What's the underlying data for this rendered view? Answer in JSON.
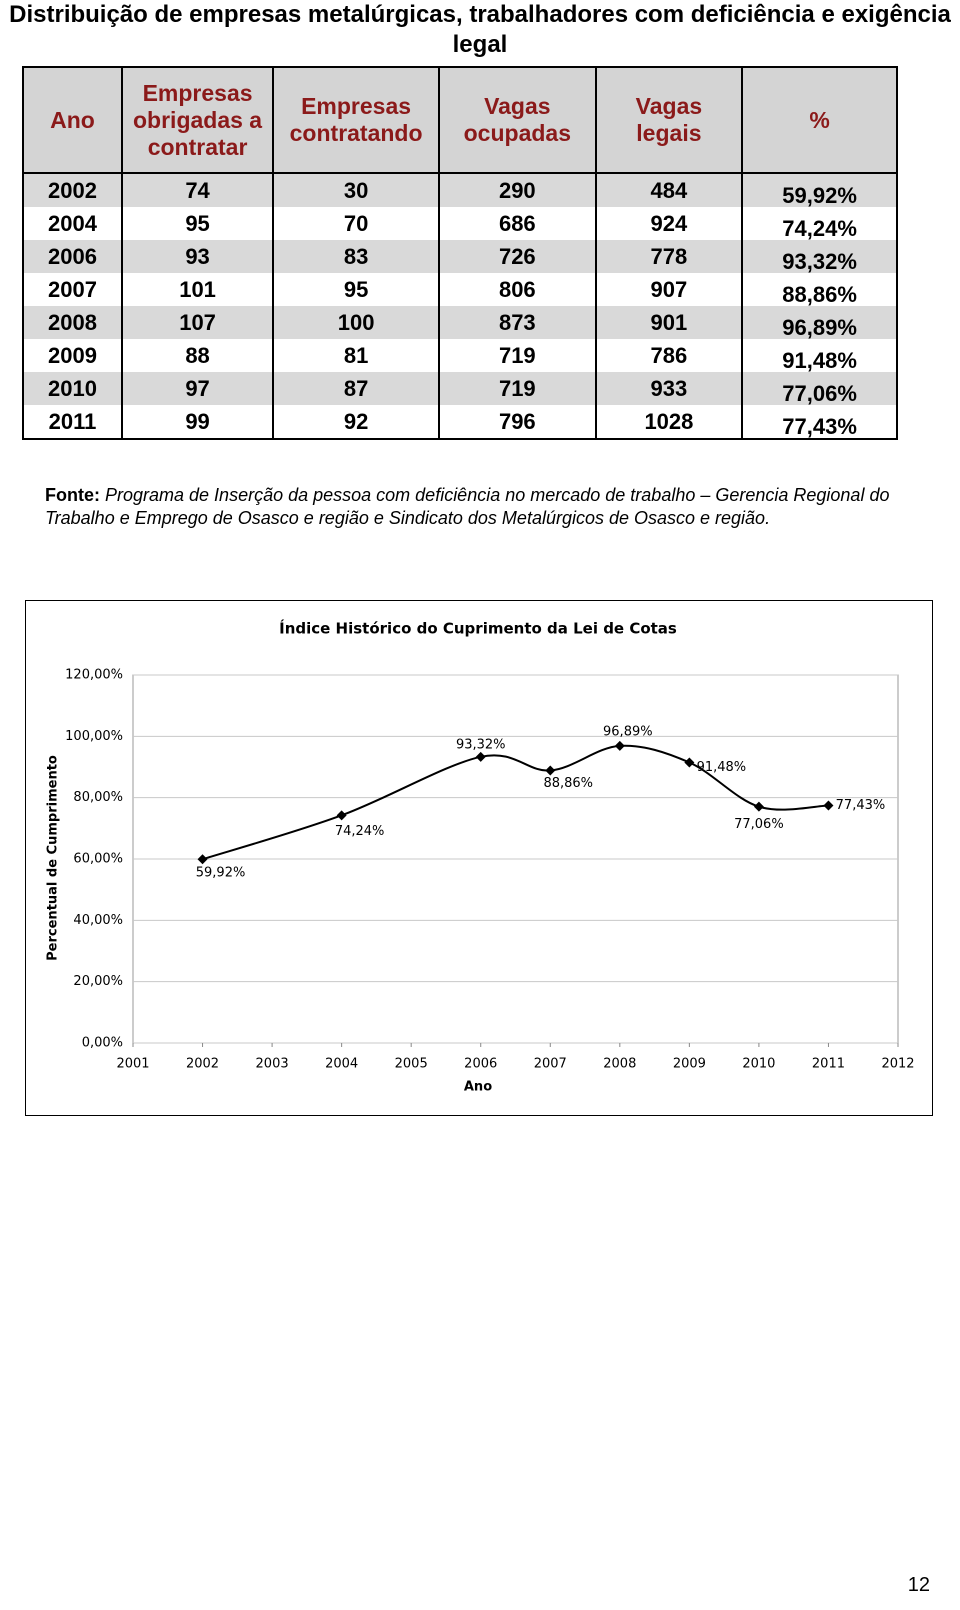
{
  "title": "Distribuição de empresas metalúrgicas, trabalhadores com deficiência e exigência legal",
  "table": {
    "header": [
      "Ano",
      "Empresas obrigadas a contratar",
      "Empresas contratando",
      "Vagas ocupadas",
      "Vagas legais",
      "%"
    ],
    "rows": [
      [
        2002,
        74,
        30,
        290,
        484,
        "59,92%"
      ],
      [
        2004,
        95,
        70,
        686,
        924,
        "74,24%"
      ],
      [
        2006,
        93,
        83,
        726,
        778,
        "93,32%"
      ],
      [
        2007,
        101,
        95,
        806,
        907,
        "88,86%"
      ],
      [
        2008,
        107,
        100,
        873,
        901,
        "96,89%"
      ],
      [
        2009,
        88,
        81,
        719,
        786,
        "91,48%"
      ],
      [
        2010,
        97,
        87,
        719,
        933,
        "77,06%"
      ],
      [
        2011,
        99,
        92,
        796,
        1028,
        "77,43%"
      ]
    ]
  },
  "source": {
    "label": "Fonte:",
    "text": "Programa de Inserção da pessoa com deficiência no mercado de trabalho – Gerencia Regional do Trabalho e Emprego de Osasco e região e Sindicato dos Metalúrgicos de Osasco e região."
  },
  "chart_data": {
    "type": "line",
    "title": "Índice Histórico do Cuprimento da Lei de Cotas",
    "x_label": "Ano",
    "y_label": "Percentual de Cumprimento",
    "x": [
      2002,
      2004,
      2006,
      2007,
      2008,
      2009,
      2010,
      2011
    ],
    "values": [
      59.92,
      74.24,
      93.32,
      88.86,
      96.89,
      91.48,
      77.06,
      77.43
    ],
    "value_labels": [
      "59,92%",
      "74,24%",
      "93,32%",
      "88,86%",
      "96,89%",
      "91,48%",
      "77,06%",
      "77,43%"
    ],
    "color": "#000000",
    "xlim": [
      2001,
      2012
    ],
    "xticks": [
      2001,
      2002,
      2003,
      2004,
      2005,
      2006,
      2007,
      2008,
      2009,
      2010,
      2011,
      2012
    ],
    "ylim": [
      0,
      120
    ],
    "yticks": [
      {
        "value": 0,
        "label": "0,00%"
      },
      {
        "value": 20,
        "label": "20,00%"
      },
      {
        "value": 40,
        "label": "40,00%"
      },
      {
        "value": 60,
        "label": "60,00%"
      },
      {
        "value": 80,
        "label": "80,00%"
      },
      {
        "value": 100,
        "label": "100,00%"
      },
      {
        "value": 120,
        "label": "120,00%"
      }
    ],
    "grid": true
  },
  "page_number": "12"
}
